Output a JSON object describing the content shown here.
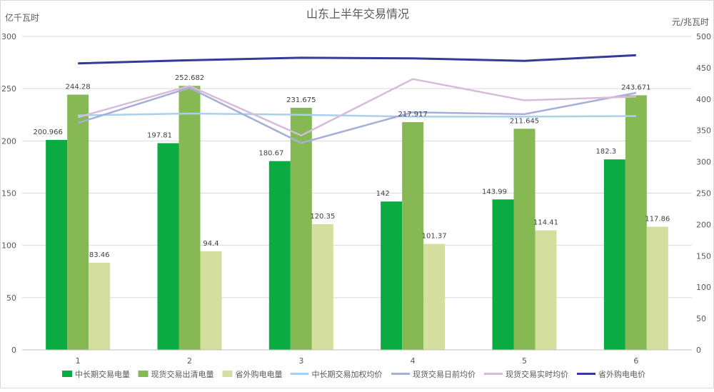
{
  "chart_data": {
    "type": "bar",
    "title": "山东上半年交易情况",
    "ylabel": "亿千瓦时",
    "y2label": "元/兆瓦时",
    "categories": [
      "1",
      "2",
      "3",
      "4",
      "5",
      "6"
    ],
    "ylim": [
      0,
      300
    ],
    "y2lim": [
      0,
      500
    ],
    "yticks": [
      "0",
      "50",
      "100",
      "150",
      "200",
      "250",
      "300"
    ],
    "y2ticks": [
      "0",
      "50",
      "100",
      "150",
      "200",
      "250",
      "300",
      "350",
      "400",
      "450",
      "500"
    ],
    "grid": true,
    "legend_position": "bottom",
    "bar_series": [
      {
        "name": "中长期交易电量",
        "color": "#0aab42",
        "values": [
          200.966,
          197.81,
          180.67,
          142,
          143.99,
          182.3
        ],
        "labels": [
          "200.966",
          "197.81",
          "180.67",
          "142",
          "143.99",
          "182.3"
        ]
      },
      {
        "name": "现货交易出清电量",
        "color": "#86b953",
        "values": [
          244.28,
          252.682,
          231.675,
          217.917,
          211.645,
          243.671
        ],
        "labels": [
          "244.28",
          "252.682",
          "231.675",
          "217.917",
          "211.645",
          "243.671"
        ]
      },
      {
        "name": "省外购电电量",
        "color": "#d3de9f",
        "values": [
          83.46,
          94.4,
          120.35,
          101.37,
          114.41,
          117.86
        ],
        "labels": [
          "83.46",
          "94.4",
          "120.35",
          "101.37",
          "114.41",
          "117.86"
        ]
      }
    ],
    "line_series": [
      {
        "name": "中长期交易加权均价",
        "color": "#a9d1ec",
        "values": [
          374,
          377,
          375,
          372,
          372,
          373
        ]
      },
      {
        "name": "现货交易日前均价",
        "color": "#a7afd9",
        "values": [
          362,
          418,
          330,
          379,
          376,
          410
        ]
      },
      {
        "name": "现货交易实时均价",
        "color": "#d6bcd9",
        "values": [
          371,
          421,
          342,
          432,
          398,
          404
        ]
      },
      {
        "name": "省外购电电价",
        "color": "#333b96",
        "values": [
          457,
          462,
          466,
          465,
          461,
          470
        ]
      }
    ]
  }
}
